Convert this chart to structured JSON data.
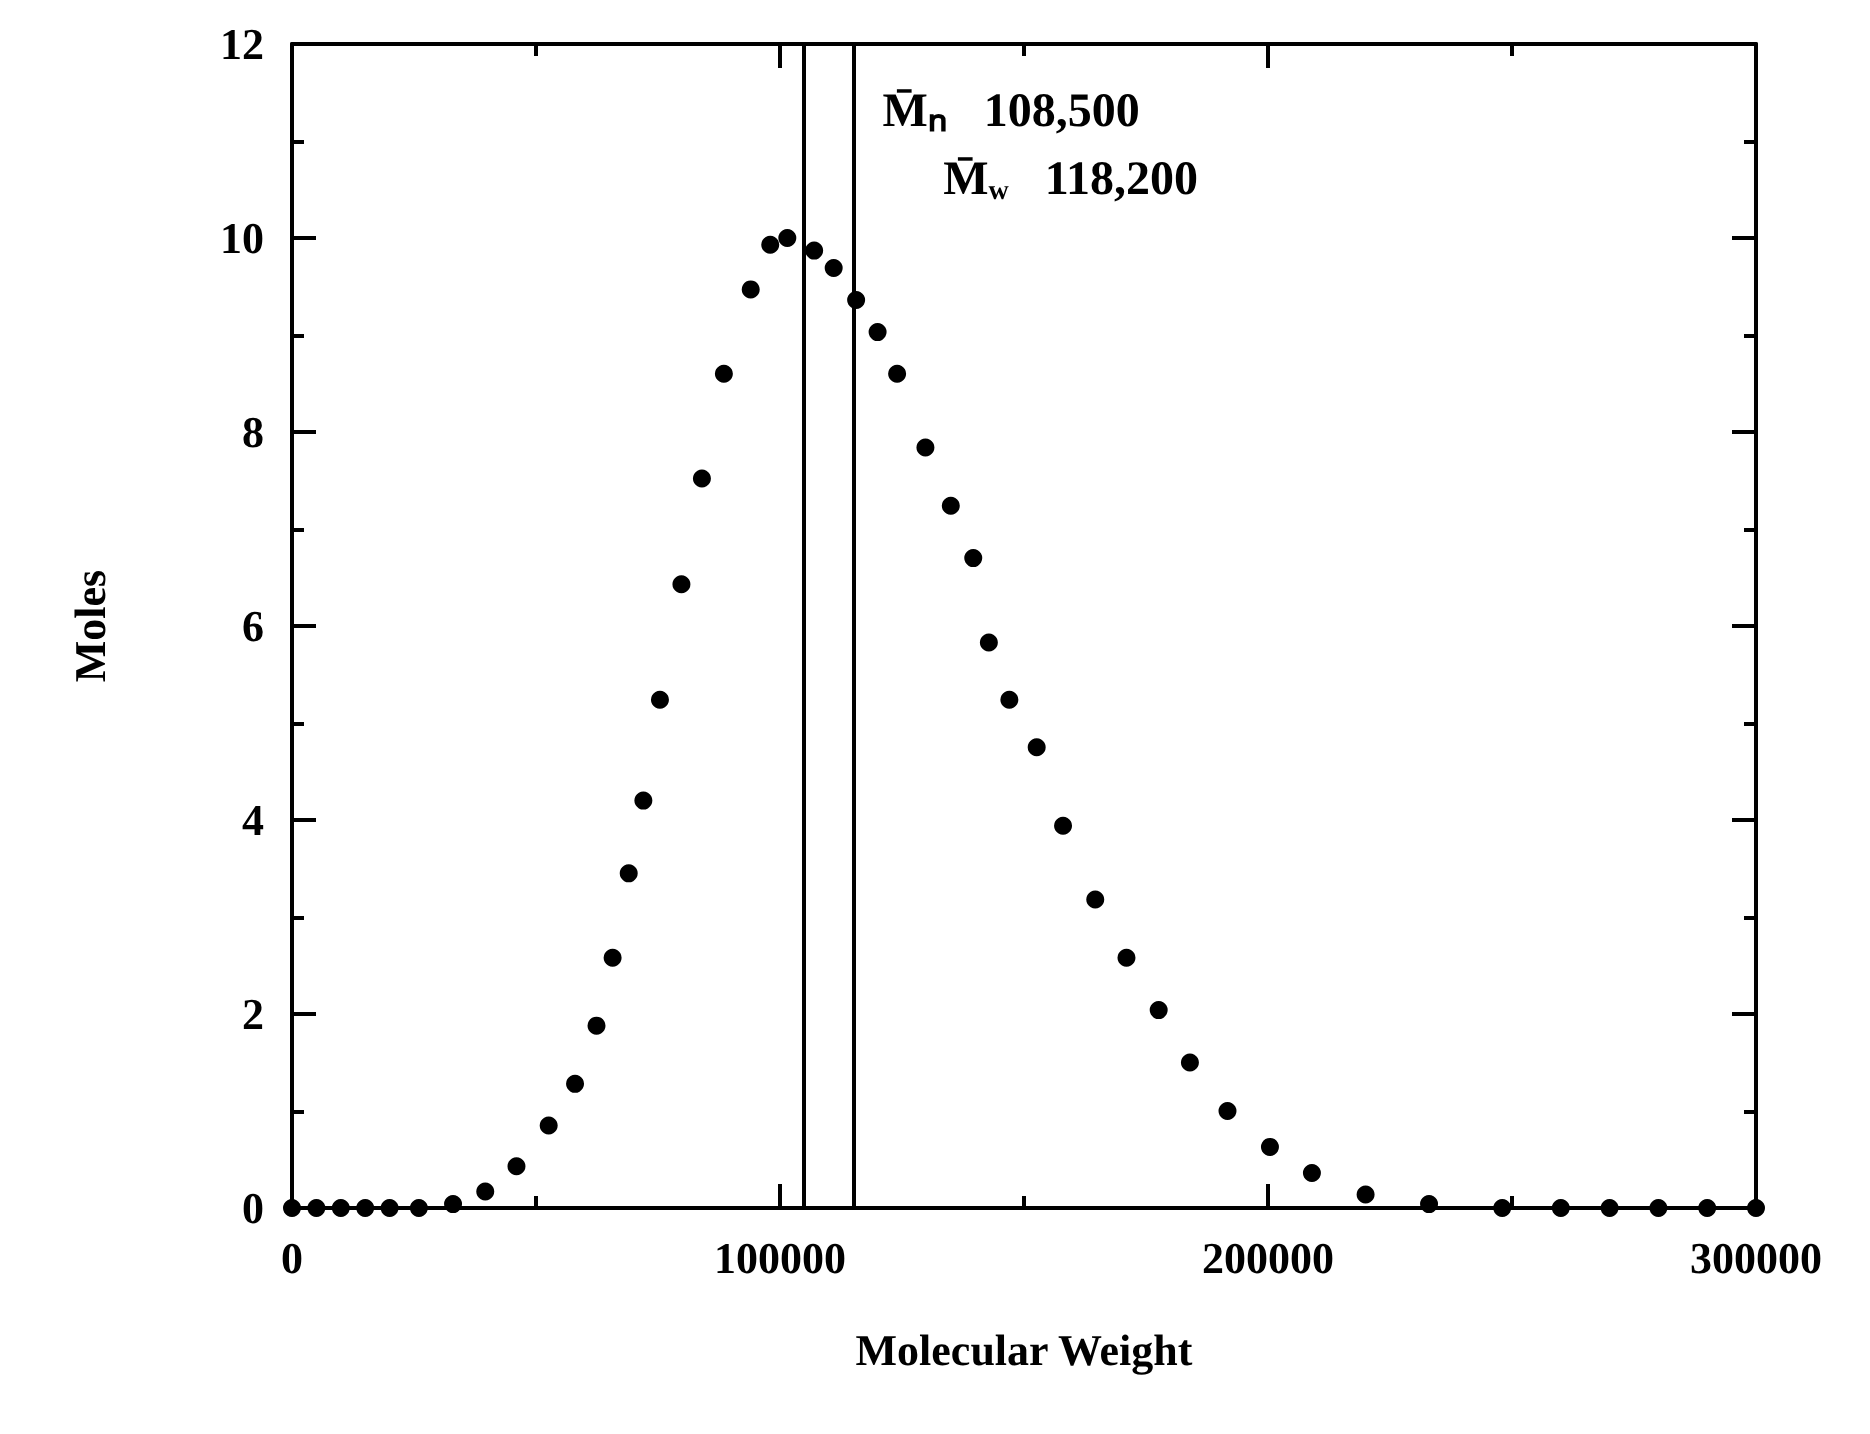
{
  "chart_data": {
    "type": "scatter",
    "xlabel": "Molecular Weight",
    "ylabel": "Moles",
    "x": [
      0,
      5000,
      10000,
      15000,
      20000,
      26000,
      33000,
      39600,
      46000,
      52600,
      58000,
      62400,
      65700,
      69000,
      72000,
      75400,
      79800,
      84000,
      88500,
      94000,
      98000,
      101500,
      107000,
      111000,
      115600,
      120000,
      124000,
      129800,
      135000,
      139600,
      142800,
      147000,
      152600,
      158000,
      164600,
      171000,
      177600,
      184000,
      191700,
      200400,
      209000,
      220000,
      233000,
      248000,
      260000,
      270000,
      280000,
      290000,
      300000
    ],
    "values": [
      0,
      0,
      0,
      0,
      0,
      0,
      0.04,
      0.17,
      0.43,
      0.85,
      1.28,
      1.88,
      2.58,
      3.45,
      4.2,
      5.24,
      6.43,
      7.52,
      8.6,
      9.47,
      9.93,
      10.0,
      9.87,
      9.69,
      9.36,
      9.03,
      8.6,
      7.84,
      7.24,
      6.7,
      5.83,
      5.24,
      4.75,
      3.94,
      3.18,
      2.58,
      2.04,
      1.5,
      1.0,
      0.63,
      0.36,
      0.14,
      0.04,
      0,
      0,
      0,
      0,
      0,
      0
    ],
    "color": "#000000",
    "marker": "circle",
    "xlim": [
      0,
      300000
    ],
    "xticks": [
      0,
      100000,
      200000,
      300000
    ],
    "ylim": [
      0,
      12
    ],
    "yticks": [
      0,
      2,
      4,
      6,
      8,
      10,
      12
    ],
    "grid": false,
    "ref_lines": [
      {
        "axis": "x",
        "value": 105000,
        "label": "M̄ₙ   108,500",
        "color": "#000000"
      },
      {
        "axis": "x",
        "value": 115000,
        "label": "M̄$_{w}$   118,200",
        "color": "#000000"
      }
    ]
  }
}
